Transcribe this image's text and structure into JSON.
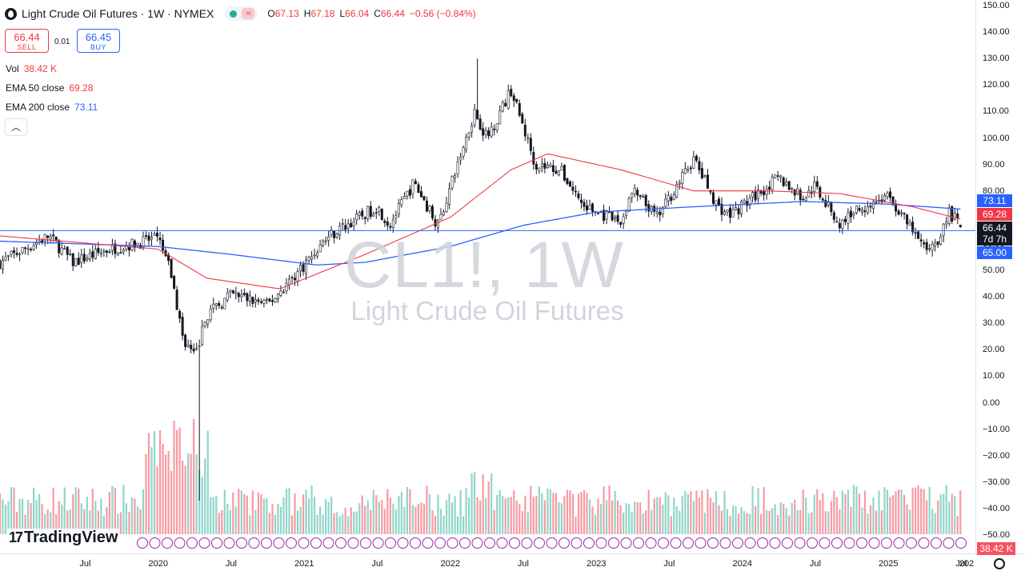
{
  "header": {
    "title": "Light Crude Oil Futures · 1W · NYMEX",
    "ohlc": [
      {
        "k": "O",
        "v": "67.13"
      },
      {
        "k": "H",
        "v": "67.18"
      },
      {
        "k": "L",
        "v": "66.04"
      },
      {
        "k": "C",
        "v": "66.44"
      }
    ],
    "change": "−0.56 (−0.84%)"
  },
  "trade": {
    "sell_price": "66.44",
    "sell_label": "SELL",
    "spread": "0.01",
    "buy_price": "66.45",
    "buy_label": "BUY"
  },
  "indicators": {
    "vol_name": "Vol",
    "vol_value": "38.42 K",
    "ema50_name": "EMA 50 close",
    "ema50_value": "69.28",
    "ema200_name": "EMA 200 close",
    "ema200_value": "73.11"
  },
  "watermark": {
    "symbol": "CL1!, 1W",
    "description": "Light Crude Oil Futures"
  },
  "price_labels": {
    "ema200": "73.11",
    "ema50": "69.28",
    "last": "66.44",
    "countdown": "7d 7h",
    "line": "65.00",
    "volume": "38.42 K"
  },
  "logo_text": "TradingView",
  "colors": {
    "up": "#22ab94",
    "down": "#f23645",
    "ema50": "#f23645",
    "ema200": "#2962ff",
    "hline": "#2962ff"
  },
  "chart_data": {
    "type": "candlestick",
    "title": "Light Crude Oil Futures · 1W · NYMEX",
    "y_axis": {
      "ticks": [
        "150.00",
        "140.00",
        "130.00",
        "120.00",
        "110.00",
        "100.00",
        "90.00",
        "80.00",
        "70.00",
        "60.00",
        "50.00",
        "40.00",
        "30.00",
        "20.00",
        "10.00",
        "0.00",
        "−10.00",
        "−20.00",
        "−30.00",
        "−40.00",
        "−50.00"
      ],
      "range": [
        -50,
        150
      ]
    },
    "x_axis": {
      "ticks": [
        "Jul",
        "2020",
        "Jul",
        "2021",
        "Jul",
        "2022",
        "Jul",
        "2023",
        "Jul",
        "2024",
        "Jul",
        "2025",
        "Jul",
        "202"
      ]
    },
    "horizontal_line": 65.0,
    "price_anchors": [
      {
        "date": "2018-12",
        "price": 53
      },
      {
        "date": "2019-04",
        "price": 63
      },
      {
        "date": "2019-06",
        "price": 53
      },
      {
        "date": "2019-09",
        "price": 58
      },
      {
        "date": "2019-12",
        "price": 61
      },
      {
        "date": "2020-01",
        "price": 62
      },
      {
        "date": "2020-02",
        "price": 50
      },
      {
        "date": "2020-03",
        "price": 25
      },
      {
        "date": "2020-04",
        "price": 17
      },
      {
        "date": "2020-05",
        "price": 33
      },
      {
        "date": "2020-07",
        "price": 41
      },
      {
        "date": "2020-10",
        "price": 37
      },
      {
        "date": "2021-01",
        "price": 52
      },
      {
        "date": "2021-03",
        "price": 63
      },
      {
        "date": "2021-07",
        "price": 74
      },
      {
        "date": "2021-08",
        "price": 67
      },
      {
        "date": "2021-10",
        "price": 83
      },
      {
        "date": "2021-12",
        "price": 67
      },
      {
        "date": "2022-03",
        "price": 110
      },
      {
        "date": "2022-04",
        "price": 100
      },
      {
        "date": "2022-06",
        "price": 118
      },
      {
        "date": "2022-08",
        "price": 90
      },
      {
        "date": "2022-10",
        "price": 88
      },
      {
        "date": "2022-12",
        "price": 74
      },
      {
        "date": "2023-03",
        "price": 68
      },
      {
        "date": "2023-04",
        "price": 80
      },
      {
        "date": "2023-06",
        "price": 70
      },
      {
        "date": "2023-09",
        "price": 92
      },
      {
        "date": "2023-11",
        "price": 74
      },
      {
        "date": "2023-12",
        "price": 71
      },
      {
        "date": "2024-04",
        "price": 85
      },
      {
        "date": "2024-06",
        "price": 77
      },
      {
        "date": "2024-07",
        "price": 82
      },
      {
        "date": "2024-09",
        "price": 67
      },
      {
        "date": "2024-10",
        "price": 72
      },
      {
        "date": "2025-01",
        "price": 78
      },
      {
        "date": "2025-04",
        "price": 58
      },
      {
        "date": "2025-05",
        "price": 61
      },
      {
        "date": "2025-06",
        "price": 72
      },
      {
        "date": "2025-07",
        "price": 66.44
      }
    ],
    "ema50_anchors": [
      {
        "date": "2018-12",
        "price": 63
      },
      {
        "date": "2020-01",
        "price": 58
      },
      {
        "date": "2020-05",
        "price": 47
      },
      {
        "date": "2020-11",
        "price": 43
      },
      {
        "date": "2021-06",
        "price": 56
      },
      {
        "date": "2022-01",
        "price": 70
      },
      {
        "date": "2022-06",
        "price": 88
      },
      {
        "date": "2022-09",
        "price": 94
      },
      {
        "date": "2023-03",
        "price": 88
      },
      {
        "date": "2023-09",
        "price": 80
      },
      {
        "date": "2024-03",
        "price": 80
      },
      {
        "date": "2024-09",
        "price": 79
      },
      {
        "date": "2025-03",
        "price": 74
      },
      {
        "date": "2025-07",
        "price": 69.28
      }
    ],
    "ema200_anchors": [
      {
        "date": "2018-12",
        "price": 61
      },
      {
        "date": "2020-01",
        "price": 59
      },
      {
        "date": "2020-07",
        "price": 56
      },
      {
        "date": "2021-02",
        "price": 52
      },
      {
        "date": "2021-06",
        "price": 53
      },
      {
        "date": "2022-01",
        "price": 59
      },
      {
        "date": "2022-07",
        "price": 67
      },
      {
        "date": "2023-01",
        "price": 72
      },
      {
        "date": "2023-09",
        "price": 74
      },
      {
        "date": "2024-06",
        "price": 76
      },
      {
        "date": "2025-01",
        "price": 75
      },
      {
        "date": "2025-07",
        "price": 73.11
      }
    ],
    "last": {
      "open": 67.13,
      "high": 67.18,
      "low": 66.04,
      "close": 66.44,
      "change": -0.56,
      "change_pct": -0.84,
      "volume": "38.42 K"
    }
  }
}
